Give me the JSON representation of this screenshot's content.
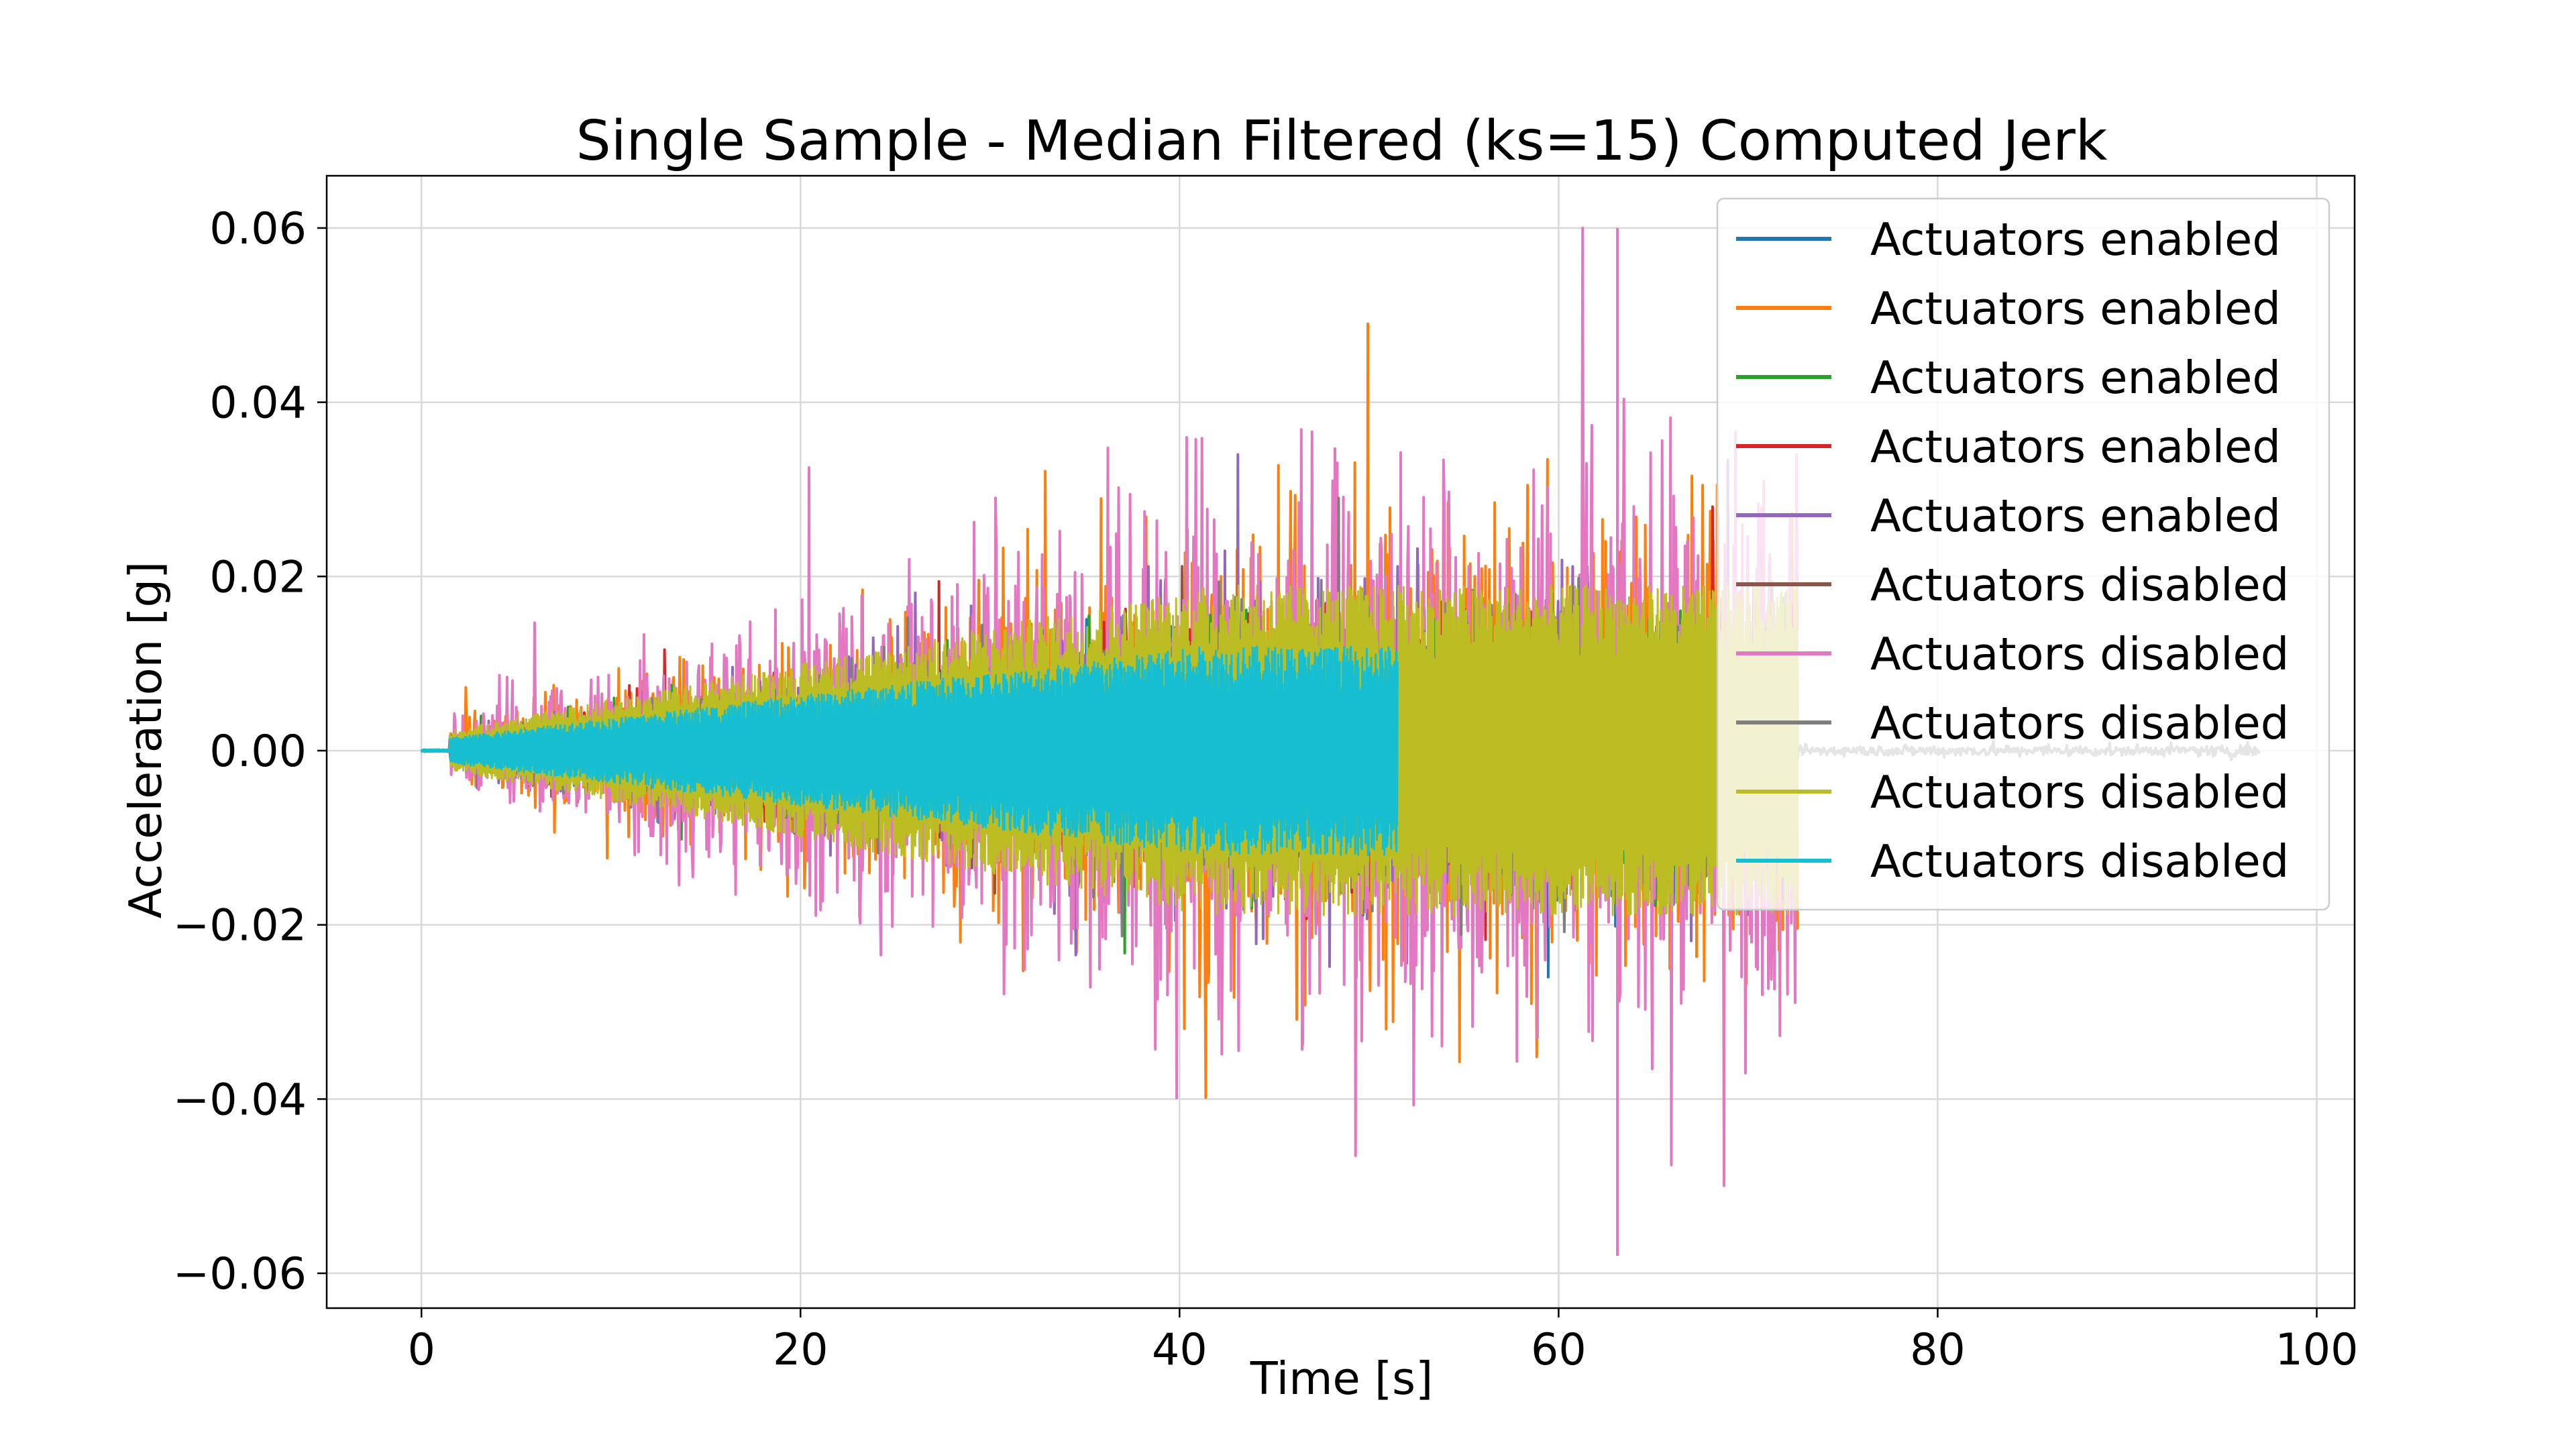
{
  "chart_data": {
    "type": "line",
    "title": "Single Sample - Median Filtered (ks=15) Computed Jerk",
    "xlabel": "Time [s]",
    "ylabel": "Acceleration [g]",
    "xlim": [
      -5,
      102
    ],
    "ylim": [
      -0.064,
      0.066
    ],
    "xticks": [
      0,
      20,
      40,
      60,
      80,
      100
    ],
    "xtick_labels": [
      "0",
      "20",
      "40",
      "60",
      "80",
      "100"
    ],
    "yticks": [
      0.06,
      0.04,
      0.02,
      0.0,
      -0.02,
      -0.04,
      -0.06
    ],
    "ytick_labels": [
      "0.06",
      "0.04",
      "0.02",
      "0.00",
      "−0.02",
      "−0.04",
      "−0.06"
    ],
    "grid": true,
    "legend_position": "top-right",
    "series": [
      {
        "name": "Actuators enabled",
        "color": "#1f77b4",
        "t_start": 0.0,
        "t_end": 72.6,
        "peak_amplitude": 0.026
      },
      {
        "name": "Actuators enabled",
        "color": "#ff7f0e",
        "t_start": 0.0,
        "t_end": 72.6,
        "peak_amplitude": 0.049
      },
      {
        "name": "Actuators enabled",
        "color": "#2ca02c",
        "t_start": 0.0,
        "t_end": 72.6,
        "peak_amplitude": 0.026
      },
      {
        "name": "Actuators enabled",
        "color": "#d62728",
        "t_start": 0.0,
        "t_end": 72.6,
        "peak_amplitude": 0.028
      },
      {
        "name": "Actuators enabled",
        "color": "#9467bd",
        "t_start": 0.0,
        "t_end": 72.6,
        "peak_amplitude": 0.034
      },
      {
        "name": "Actuators disabled",
        "color": "#8c564b",
        "t_start": 0.0,
        "t_end": 72.6,
        "peak_amplitude": 0.022
      },
      {
        "name": "Actuators disabled",
        "color": "#e377c2",
        "t_start": 0.0,
        "t_end": 72.6,
        "peak_amplitude": 0.06
      },
      {
        "name": "Actuators disabled",
        "color": "#7f7f7f",
        "t_start": 0.0,
        "t_end": 97.0,
        "peak_amplitude": 0.029
      },
      {
        "name": "Actuators disabled",
        "color": "#bcbd22",
        "t_start": 0.0,
        "t_end": 72.6,
        "peak_amplitude": 0.019
      },
      {
        "name": "Actuators disabled",
        "color": "#17becf",
        "t_start": 0.0,
        "t_end": 51.5,
        "peak_amplitude": 0.012
      }
    ]
  }
}
